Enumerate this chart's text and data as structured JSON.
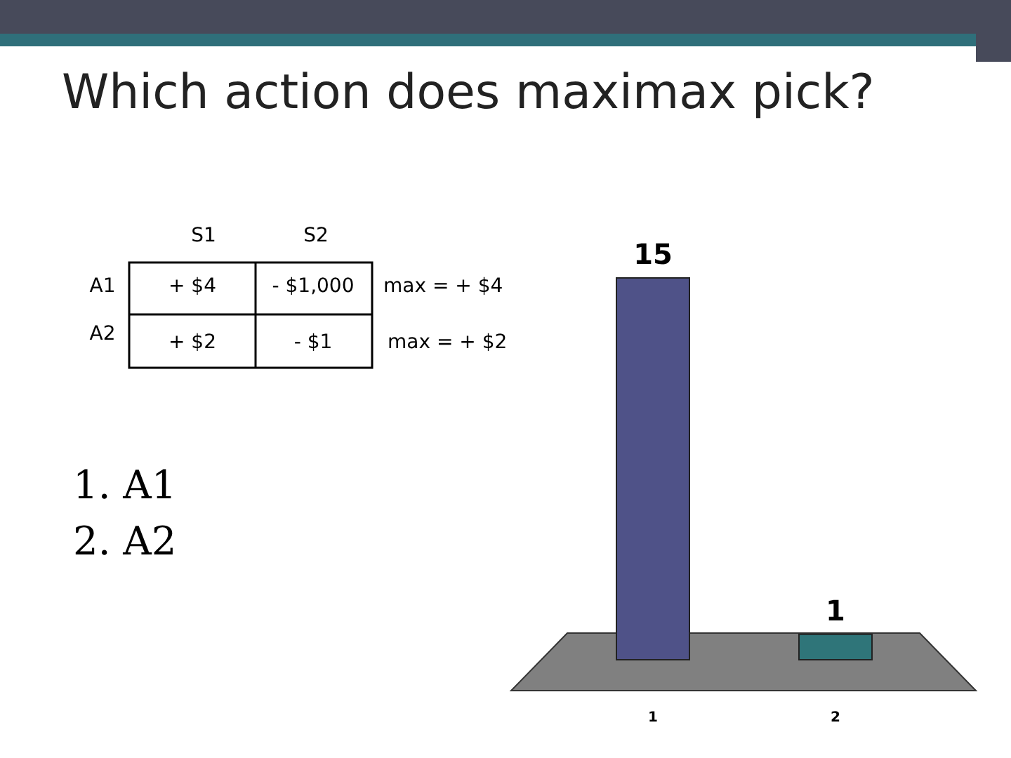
{
  "chart_data": {
    "type": "bar",
    "title": "Which action does maximax pick?",
    "categories": [
      "1",
      "2"
    ],
    "values": [
      15,
      1
    ],
    "colors": [
      "#4f5288",
      "#2f7579"
    ],
    "data_labels": true,
    "annotations": [
      "S1",
      "S2",
      "A1",
      "+ $4",
      "- $1,000",
      "max = + $4",
      "A2",
      "+ $2",
      "- $1",
      "max = + $2",
      "1. A1",
      "2. A2"
    ]
  }
}
